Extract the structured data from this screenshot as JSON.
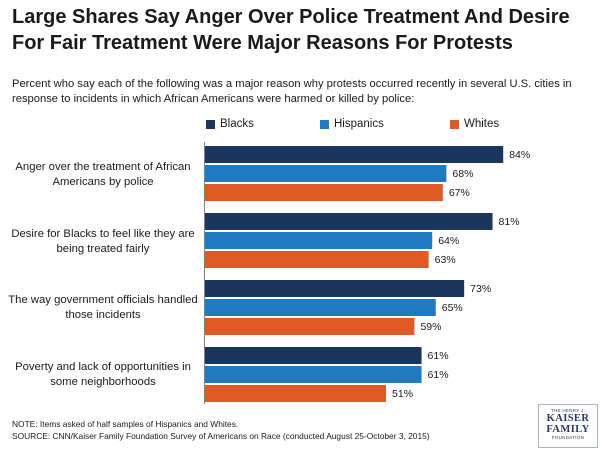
{
  "title": "Large Shares Say Anger Over Police Treatment And Desire For Fair Treatment Were Major Reasons For Protests",
  "subtitle": "Percent who say each of the following was a major reason why protests occurred recently in several U.S. cities in response to incidents in which African Americans were harmed or killed by police:",
  "notes": [
    "NOTE: Items asked of half samples of Hispanics and Whites.",
    "SOURCE: CNN/Kaiser Family Foundation Survey of Americans on Race (conducted August 25-October 3, 2015)"
  ],
  "logo": {
    "line1": "THE HENRY J.",
    "line2": "KAISER",
    "line3": "FAMILY",
    "line4": "FOUNDATION"
  },
  "colors": {
    "blacks": "#1b365d",
    "hispanics": "#1f7ac2",
    "whites": "#e05a26"
  },
  "chart_data": {
    "type": "bar",
    "orientation": "horizontal",
    "title": "Large Shares Say Anger Over Police Treatment And Desire For Fair Treatment Were Major Reasons For Protests",
    "xlabel": "",
    "ylabel": "",
    "xlim": [
      0,
      100
    ],
    "legend_position": "top",
    "grid": false,
    "categories": [
      "Anger over the treatment of African Americans by police",
      "Desire for Blacks to feel like they are being treated fairly",
      "The way government officials handled those incidents",
      "Poverty and lack of opportunities in some neighborhoods"
    ],
    "category_lines": [
      [
        "Anger over the treatment of African",
        "Americans by police"
      ],
      [
        "Desire for Blacks to feel like they are",
        "being treated fairly"
      ],
      [
        "The way government officials handled",
        "those incidents"
      ],
      [
        "Poverty and lack of opportunities in",
        "some neighborhoods"
      ]
    ],
    "series": [
      {
        "name": "Blacks",
        "key": "blacks",
        "values": [
          84,
          81,
          73,
          61
        ],
        "labels": [
          "84%",
          "81%",
          "73%",
          "61%"
        ]
      },
      {
        "name": "Hispanics",
        "key": "hispanics",
        "values": [
          68,
          64,
          65,
          61
        ],
        "labels": [
          "68%",
          "64%",
          "65%",
          "61%"
        ]
      },
      {
        "name": "Whites",
        "key": "whites",
        "values": [
          67,
          63,
          59,
          51
        ],
        "labels": [
          "67%",
          "63%",
          "59%",
          "51%"
        ]
      }
    ]
  }
}
